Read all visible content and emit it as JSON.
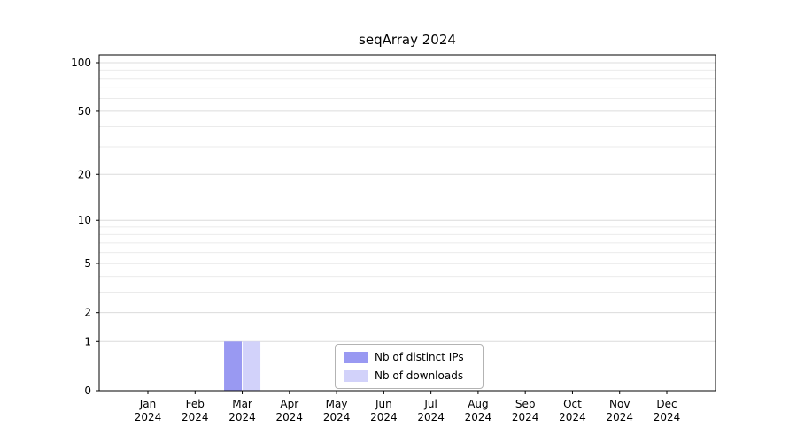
{
  "chart_data": {
    "type": "bar",
    "title": "seqArray 2024",
    "categories": [
      "Jan",
      "Feb",
      "Mar",
      "Apr",
      "May",
      "Jun",
      "Jul",
      "Aug",
      "Sep",
      "Oct",
      "Nov",
      "Dec"
    ],
    "year": "2024",
    "series": [
      {
        "name": "Nb of distinct IPs",
        "color": "#9999f2",
        "values": [
          0,
          0,
          1,
          0,
          0,
          0,
          0,
          0,
          0,
          0,
          0,
          0
        ]
      },
      {
        "name": "Nb of downloads",
        "color": "#d2d2fa",
        "values": [
          0,
          0,
          1,
          0,
          0,
          0,
          0,
          0,
          0,
          0,
          0,
          0
        ]
      }
    ],
    "yticks": [
      0,
      1,
      2,
      5,
      10,
      20,
      50,
      100
    ],
    "minor_gridlines": [
      3,
      4,
      6,
      7,
      8,
      9,
      30,
      40,
      60,
      70,
      80,
      90
    ],
    "scale": "log10(1+v)",
    "ylim": [
      0,
      100
    ],
    "grid": true,
    "legend_position": "bottom-center",
    "colors": {
      "major_grid": "#dcdcdc",
      "minor_grid": "#ebebeb",
      "axis": "#000000",
      "background": "#ffffff"
    }
  }
}
